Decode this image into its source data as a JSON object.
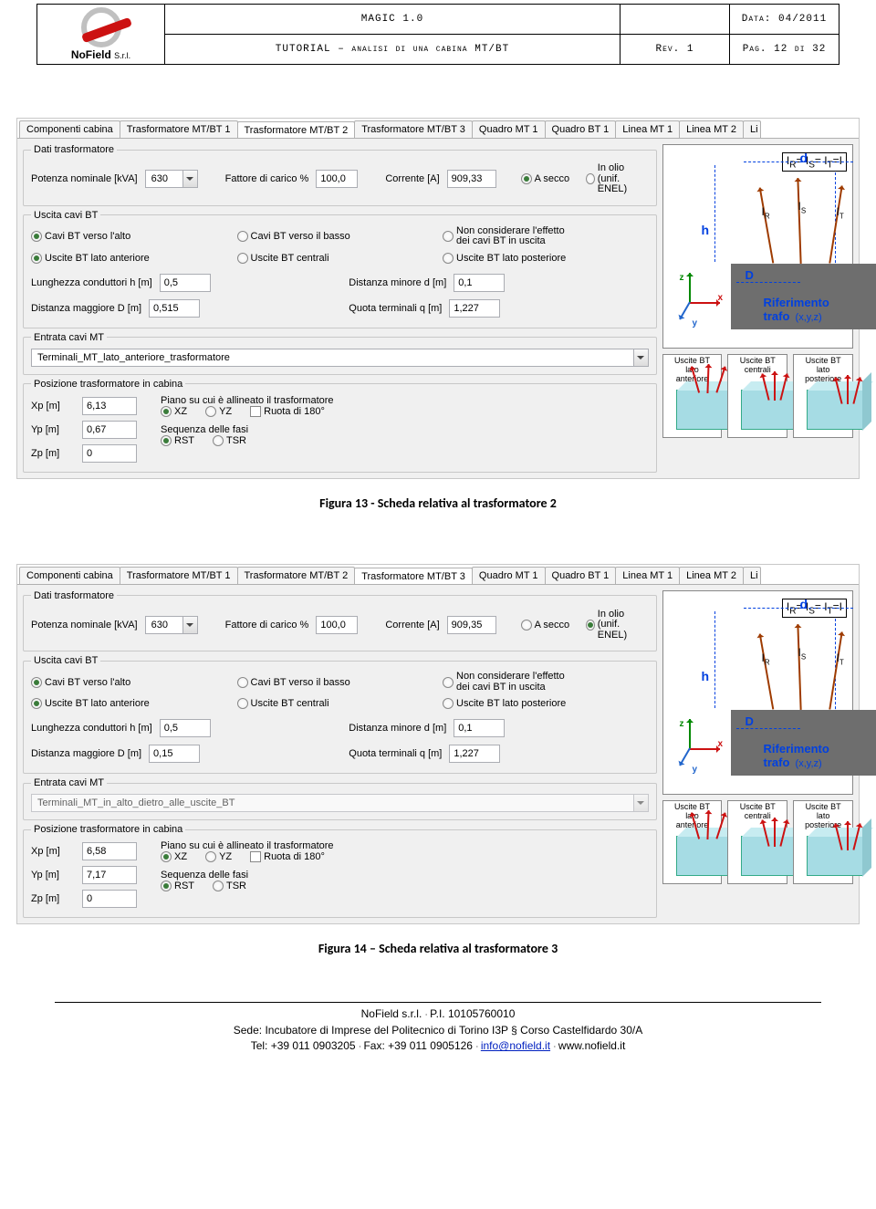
{
  "header": {
    "logo_name": "NoField",
    "logo_suffix": "S.r.l.",
    "title1": "MAGIC 1.0",
    "title2": "TUTORIAL – analisi di una cabina MT/BT",
    "data": "Data: 04/2011",
    "rev": "Rev. 1",
    "pag": "Pag. 12 di 32"
  },
  "tabs": [
    "Componenti cabina",
    "Trasformatore MT/BT 1",
    "Trasformatore MT/BT 2",
    "Trasformatore MT/BT 3",
    "Quadro MT 1",
    "Quadro BT 1",
    "Linea MT 1",
    "Linea MT 2",
    "Li"
  ],
  "labels": {
    "dati": "Dati trasformatore",
    "potenza": "Potenza nominale [kVA]",
    "fattore": "Fattore di carico %",
    "corrente": "Corrente [A]",
    "asecco": "A secco",
    "inolio": "In olio\n(unif. ENEL)",
    "uscita": "Uscita cavi BT",
    "cavi_alto": "Cavi BT verso l'alto",
    "cavi_basso": "Cavi BT verso il basso",
    "non_cons": "Non considerare l'effetto\ndei cavi BT in uscita",
    "lato_ant": "Uscite BT lato anteriore",
    "lato_cen": "Uscite BT centrali",
    "lato_pos": "Uscite BT lato posteriore",
    "lungh": "Lunghezza conduttori h [m]",
    "distmin": "Distanza minore  d [m]",
    "distmax": "Distanza maggiore D [m]",
    "quota": "Quota terminali q [m]",
    "entrata": "Entrata cavi MT",
    "posiz": "Posizione trasformatore in cabina",
    "xp": "Xp [m]",
    "yp": "Yp [m]",
    "zp": "Zp [m]",
    "piano": "Piano su cui è allineato il trasformatore",
    "xz": "XZ",
    "yz": "YZ",
    "ruota": "Ruota di 180°",
    "seq": "Sequenza delle fasi",
    "rst": "RST",
    "tsr": "TSR",
    "eq": "I",
    "eqtxt": "R",
    "eq2": "= I",
    "eq2b": "S",
    "eq3": "= I",
    "eq3b": "T",
    "eq4": "=I",
    "rif": "Riferimento trafo",
    "rifxyz": "(x,y,z)",
    "th_ant": "Uscite BT\nlato\nanteriore",
    "th_cen": "Uscite BT\ncentrali",
    "th_pos": "Uscite BT\nlato\nposteriore"
  },
  "panel1": {
    "active_tab": 2,
    "potenza": "630",
    "fattore": "100,0",
    "corrente": "909,33",
    "tipo": "asecco",
    "cavi_dir": "alto",
    "cavi_lato": "ant",
    "lungh": "0,5",
    "distmin": "0,1",
    "distmax": "0,515",
    "quota": "1,227",
    "entrata": "Terminali_MT_lato_anteriore_trasformatore",
    "entrata_enabled": true,
    "xp": "6,13",
    "yp": "0,67",
    "zp": "0",
    "piano": "XZ",
    "ruota": false,
    "seq": "RST"
  },
  "panel2": {
    "active_tab": 3,
    "potenza": "630",
    "fattore": "100,0",
    "corrente": "909,35",
    "tipo": "inolio",
    "cavi_dir": "alto",
    "cavi_lato": "ant",
    "lungh": "0,5",
    "distmin": "0,1",
    "distmax": "0,15",
    "quota": "1,227",
    "entrata": "Terminali_MT_in_alto_dietro_alle_uscite_BT",
    "entrata_enabled": false,
    "xp": "6,58",
    "yp": "7,17",
    "zp": "0",
    "piano": "XZ",
    "ruota": false,
    "seq": "RST"
  },
  "captions": {
    "c1": "Figura 13 - Scheda relativa al trasformatore 2",
    "c2": "Figura 14 – Scheda relativa al trasformatore 3"
  },
  "footer": {
    "l1a": "NoField s.r.l.",
    "l1b": "P.I. 10105760010",
    "l2": "Sede: Incubatore di Imprese del Politecnico di Torino I3P § Corso Castelfidardo 30/A",
    "l3a": "Tel: +39 011 0903205",
    "l3b": "Fax: +39 011 0905126",
    "l3c": "info@nofield.it",
    "l3d": "www.nofield.it"
  }
}
